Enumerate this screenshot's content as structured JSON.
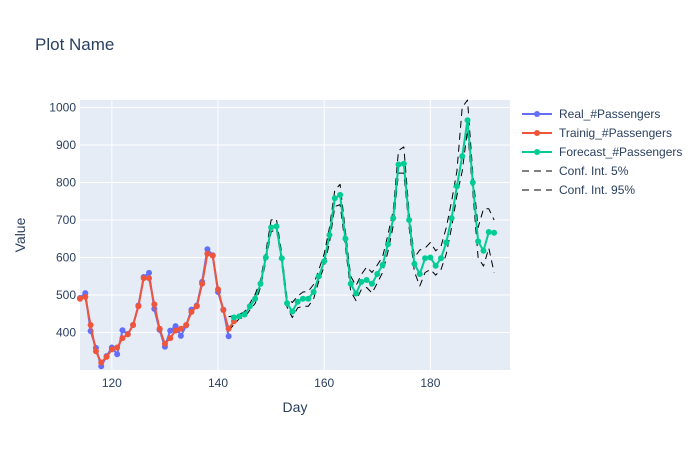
{
  "chart_data": {
    "type": "line",
    "title": "Plot Name",
    "xlabel": "Day",
    "ylabel": "Value",
    "xlim": [
      114,
      195
    ],
    "ylim": [
      300,
      1020
    ],
    "xticks": [
      120,
      140,
      160,
      180
    ],
    "yticks": [
      400,
      500,
      600,
      700,
      800,
      900,
      1000
    ],
    "grid": true,
    "legend_position": "top-right",
    "series": [
      {
        "name": "Real_#Passengers",
        "color": "#636efa",
        "style": "lines+markers",
        "x": [
          114,
          115,
          116,
          117,
          118,
          119,
          120,
          121,
          122,
          123,
          124,
          125,
          126,
          127,
          128,
          129,
          130,
          131,
          132,
          133,
          134,
          135,
          136,
          137,
          138,
          139,
          140,
          141,
          142
        ],
        "y": [
          492,
          505,
          404,
          359,
          310,
          337,
          360,
          342,
          406,
          396,
          420,
          472,
          548,
          559,
          463,
          407,
          362,
          405,
          417,
          391,
          419,
          461,
          472,
          535,
          622,
          606,
          508,
          461,
          390
        ]
      },
      {
        "name": "Trainig_#Passengers",
        "color": "#ef553b",
        "style": "lines+markers",
        "x": [
          114,
          115,
          116,
          117,
          118,
          119,
          120,
          121,
          122,
          123,
          124,
          125,
          126,
          127,
          128,
          129,
          130,
          131,
          132,
          133,
          134,
          135,
          136,
          137,
          138,
          139,
          140,
          141,
          142,
          143
        ],
        "y": [
          490,
          495,
          420,
          350,
          320,
          335,
          355,
          360,
          385,
          395,
          420,
          470,
          545,
          545,
          475,
          410,
          370,
          385,
          405,
          410,
          420,
          455,
          470,
          530,
          610,
          605,
          515,
          460,
          410,
          430
        ]
      },
      {
        "name": "Forecast_#Passengers",
        "color": "#00cc96",
        "style": "lines+markers",
        "x": [
          143,
          144,
          145,
          146,
          147,
          148,
          149,
          150,
          151,
          152,
          153,
          154,
          155,
          156,
          157,
          158,
          159,
          160,
          161,
          162,
          163,
          164,
          165,
          166,
          167,
          168,
          169,
          170,
          171,
          172,
          173,
          174,
          175,
          176,
          177,
          178,
          179,
          180,
          181,
          182,
          183,
          184,
          185,
          186,
          187,
          188,
          189,
          190,
          191,
          192
        ],
        "y": [
          440,
          443,
          448,
          470,
          490,
          530,
          600,
          680,
          683,
          598,
          478,
          456,
          482,
          490,
          490,
          508,
          550,
          590,
          660,
          758,
          767,
          650,
          530,
          504,
          535,
          540,
          530,
          556,
          580,
          635,
          705,
          848,
          850,
          700,
          583,
          556,
          598,
          600,
          578,
          598,
          640,
          705,
          790,
          870,
          966,
          800,
          643,
          618,
          668,
          666
        ]
      },
      {
        "name": "Conf. Int. 5%",
        "color": "#000000",
        "style": "dash",
        "x": [
          142,
          144,
          145,
          146,
          147,
          148,
          149,
          150,
          151,
          152,
          153,
          154,
          155,
          156,
          157,
          158,
          159,
          160,
          161,
          162,
          163,
          164,
          165,
          166,
          167,
          168,
          169,
          170,
          171,
          172,
          173,
          174,
          175,
          176,
          177,
          178,
          179,
          180,
          181,
          182,
          183,
          184,
          185,
          186,
          187,
          188,
          189,
          190,
          191,
          192
        ],
        "y": [
          405,
          437,
          440,
          460,
          478,
          520,
          590,
          668,
          676,
          588,
          468,
          440,
          466,
          470,
          470,
          490,
          538,
          576,
          640,
          736,
          741,
          630,
          510,
          485,
          515,
          520,
          505,
          532,
          560,
          615,
          684,
          825,
          825,
          680,
          562,
          524,
          560,
          568,
          553,
          568,
          610,
          680,
          765,
          830,
          940,
          775,
          600,
          577,
          625,
          560
        ]
      },
      {
        "name": "Conf. Int. 95%",
        "color": "#000000",
        "style": "dash",
        "x": [
          142,
          144,
          145,
          146,
          147,
          148,
          149,
          150,
          151,
          152,
          153,
          154,
          155,
          156,
          157,
          158,
          159,
          160,
          161,
          162,
          163,
          164,
          165,
          166,
          167,
          168,
          169,
          170,
          171,
          172,
          173,
          174,
          175,
          176,
          177,
          178,
          179,
          180,
          181,
          182,
          183,
          184,
          185,
          186,
          187,
          188,
          189,
          190,
          191,
          192
        ],
        "y": [
          442,
          448,
          456,
          478,
          502,
          540,
          615,
          700,
          703,
          612,
          492,
          480,
          497,
          508,
          510,
          528,
          568,
          610,
          680,
          780,
          795,
          670,
          550,
          525,
          555,
          575,
          560,
          580,
          602,
          660,
          726,
          885,
          895,
          720,
          600,
          620,
          625,
          640,
          618,
          630,
          680,
          750,
          830,
          1000,
          1020,
          825,
          680,
          730,
          730,
          700
        ]
      }
    ]
  }
}
